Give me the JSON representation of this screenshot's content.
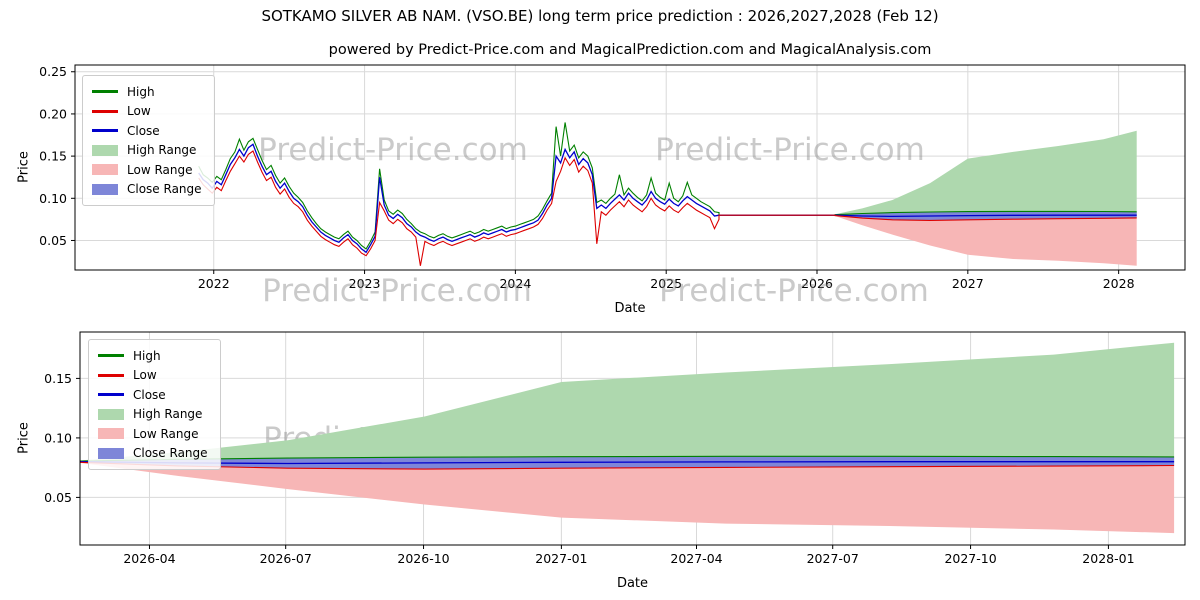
{
  "figure": {
    "title": "SOTKAMO SILVER AB NAM. (VSO.BE) long term price prediction : 2026,2027,2028 (Feb 12)",
    "subtitle": "powered by Predict-Price.com and MagicalPrediction.com and MagicalAnalysis.com",
    "watermark": "Predict-Price.com"
  },
  "chart_data": [
    {
      "type": "line",
      "title": "powered by Predict-Price.com and MagicalPrediction.com and MagicalAnalysis.com",
      "xlabel": "Date",
      "ylabel": "Price",
      "xlim": [
        2021.08,
        2028.44
      ],
      "ylim": [
        0.015,
        0.258
      ],
      "xticks": [
        2022,
        2023,
        2024,
        2025,
        2026,
        2027,
        2028
      ],
      "xtick_labels": [
        "2022",
        "2023",
        "2024",
        "2025",
        "2026",
        "2027",
        "2028"
      ],
      "yticks": [
        0.05,
        0.1,
        0.15,
        0.2,
        0.25
      ],
      "ytick_labels": [
        "0.05",
        "0.10",
        "0.15",
        "0.20",
        "0.25"
      ],
      "grid": true,
      "legend_position": "upper left",
      "legend": [
        {
          "label": "High",
          "swatch": "line",
          "color": "#008000"
        },
        {
          "label": "Low",
          "swatch": "line",
          "color": "#dd0000"
        },
        {
          "label": "Close",
          "swatch": "line",
          "color": "#0000cc"
        },
        {
          "label": "High Range",
          "swatch": "patch",
          "color": "#aed8ae"
        },
        {
          "label": "Low Range",
          "swatch": "patch",
          "color": "#f7b6b6"
        },
        {
          "label": "Close Range",
          "swatch": "patch",
          "color": "#7e86d8"
        }
      ],
      "colors": {
        "high": "#008000",
        "low": "#dd0000",
        "close": "#0000cc",
        "high_range": "#aed8ae",
        "low_range": "#f7b6b6",
        "close_range": "#7e86d8",
        "grid": "#d9d9d9"
      },
      "historical_hlc": [
        [
          2021.9,
          0.138,
          0.124,
          0.13
        ],
        [
          2021.93,
          0.128,
          0.116,
          0.122
        ],
        [
          2021.96,
          0.124,
          0.111,
          0.118
        ],
        [
          2021.99,
          0.119,
          0.106,
          0.112
        ],
        [
          2022.02,
          0.126,
          0.113,
          0.12
        ],
        [
          2022.05,
          0.122,
          0.109,
          0.116
        ],
        [
          2022.08,
          0.134,
          0.121,
          0.128
        ],
        [
          2022.11,
          0.147,
          0.132,
          0.14
        ],
        [
          2022.14,
          0.155,
          0.141,
          0.148
        ],
        [
          2022.17,
          0.17,
          0.15,
          0.158
        ],
        [
          2022.2,
          0.157,
          0.143,
          0.15
        ],
        [
          2022.23,
          0.167,
          0.152,
          0.16
        ],
        [
          2022.26,
          0.171,
          0.156,
          0.164
        ],
        [
          2022.29,
          0.158,
          0.143,
          0.15
        ],
        [
          2022.32,
          0.145,
          0.131,
          0.138
        ],
        [
          2022.35,
          0.134,
          0.121,
          0.128
        ],
        [
          2022.38,
          0.139,
          0.125,
          0.132
        ],
        [
          2022.41,
          0.127,
          0.113,
          0.12
        ],
        [
          2022.44,
          0.118,
          0.105,
          0.112
        ],
        [
          2022.47,
          0.124,
          0.111,
          0.118
        ],
        [
          2022.5,
          0.114,
          0.101,
          0.108
        ],
        [
          2022.53,
          0.106,
          0.094,
          0.1
        ],
        [
          2022.56,
          0.101,
          0.09,
          0.096
        ],
        [
          2022.59,
          0.095,
          0.084,
          0.09
        ],
        [
          2022.62,
          0.085,
          0.074,
          0.08
        ],
        [
          2022.65,
          0.077,
          0.067,
          0.072
        ],
        [
          2022.68,
          0.07,
          0.061,
          0.066
        ],
        [
          2022.71,
          0.064,
          0.055,
          0.06
        ],
        [
          2022.74,
          0.06,
          0.051,
          0.056
        ],
        [
          2022.77,
          0.057,
          0.048,
          0.053
        ],
        [
          2022.8,
          0.054,
          0.045,
          0.05
        ],
        [
          2022.83,
          0.052,
          0.043,
          0.048
        ],
        [
          2022.86,
          0.057,
          0.048,
          0.053
        ],
        [
          2022.89,
          0.061,
          0.052,
          0.057
        ],
        [
          2022.92,
          0.054,
          0.045,
          0.05
        ],
        [
          2022.95,
          0.05,
          0.041,
          0.046
        ],
        [
          2022.98,
          0.044,
          0.035,
          0.04
        ],
        [
          2023.01,
          0.04,
          0.032,
          0.036
        ],
        [
          2023.04,
          0.049,
          0.04,
          0.045
        ],
        [
          2023.07,
          0.06,
          0.05,
          0.055
        ],
        [
          2023.1,
          0.135,
          0.095,
          0.125
        ],
        [
          2023.13,
          0.098,
          0.085,
          0.092
        ],
        [
          2023.16,
          0.085,
          0.074,
          0.08
        ],
        [
          2023.19,
          0.081,
          0.07,
          0.076
        ],
        [
          2023.22,
          0.086,
          0.075,
          0.081
        ],
        [
          2023.25,
          0.082,
          0.071,
          0.077
        ],
        [
          2023.28,
          0.075,
          0.064,
          0.07
        ],
        [
          2023.31,
          0.07,
          0.06,
          0.066
        ],
        [
          2023.34,
          0.064,
          0.054,
          0.06
        ],
        [
          2023.37,
          0.06,
          0.02,
          0.056
        ],
        [
          2023.4,
          0.058,
          0.049,
          0.054
        ],
        [
          2023.43,
          0.055,
          0.046,
          0.051
        ],
        [
          2023.46,
          0.053,
          0.044,
          0.049
        ],
        [
          2023.49,
          0.056,
          0.047,
          0.052
        ],
        [
          2023.52,
          0.058,
          0.049,
          0.054
        ],
        [
          2023.55,
          0.055,
          0.046,
          0.051
        ],
        [
          2023.58,
          0.053,
          0.044,
          0.049
        ],
        [
          2023.61,
          0.055,
          0.046,
          0.051
        ],
        [
          2023.64,
          0.057,
          0.048,
          0.053
        ],
        [
          2023.67,
          0.059,
          0.05,
          0.055
        ],
        [
          2023.7,
          0.061,
          0.052,
          0.057
        ],
        [
          2023.73,
          0.058,
          0.049,
          0.054
        ],
        [
          2023.76,
          0.06,
          0.051,
          0.056
        ],
        [
          2023.79,
          0.063,
          0.054,
          0.059
        ],
        [
          2023.82,
          0.061,
          0.052,
          0.057
        ],
        [
          2023.85,
          0.063,
          0.054,
          0.059
        ],
        [
          2023.88,
          0.065,
          0.056,
          0.061
        ],
        [
          2023.91,
          0.067,
          0.058,
          0.063
        ],
        [
          2023.94,
          0.064,
          0.055,
          0.06
        ],
        [
          2023.97,
          0.066,
          0.057,
          0.062
        ],
        [
          2024.0,
          0.067,
          0.058,
          0.063
        ],
        [
          2024.03,
          0.069,
          0.06,
          0.065
        ],
        [
          2024.06,
          0.071,
          0.062,
          0.067
        ],
        [
          2024.09,
          0.073,
          0.064,
          0.069
        ],
        [
          2024.12,
          0.075,
          0.066,
          0.071
        ],
        [
          2024.15,
          0.079,
          0.069,
          0.074
        ],
        [
          2024.18,
          0.087,
          0.076,
          0.082
        ],
        [
          2024.21,
          0.097,
          0.086,
          0.092
        ],
        [
          2024.24,
          0.106,
          0.094,
          0.1
        ],
        [
          2024.27,
          0.185,
          0.12,
          0.15
        ],
        [
          2024.3,
          0.15,
          0.132,
          0.142
        ],
        [
          2024.33,
          0.19,
          0.148,
          0.158
        ],
        [
          2024.36,
          0.156,
          0.139,
          0.148
        ],
        [
          2024.39,
          0.163,
          0.146,
          0.155
        ],
        [
          2024.42,
          0.148,
          0.131,
          0.14
        ],
        [
          2024.45,
          0.155,
          0.138,
          0.147
        ],
        [
          2024.48,
          0.15,
          0.133,
          0.142
        ],
        [
          2024.51,
          0.136,
          0.118,
          0.128
        ],
        [
          2024.54,
          0.095,
          0.046,
          0.088
        ],
        [
          2024.57,
          0.098,
          0.084,
          0.092
        ],
        [
          2024.6,
          0.094,
          0.08,
          0.088
        ],
        [
          2024.63,
          0.1,
          0.086,
          0.094
        ],
        [
          2024.66,
          0.105,
          0.091,
          0.099
        ],
        [
          2024.69,
          0.128,
          0.096,
          0.104
        ],
        [
          2024.72,
          0.104,
          0.09,
          0.098
        ],
        [
          2024.75,
          0.112,
          0.098,
          0.106
        ],
        [
          2024.78,
          0.106,
          0.092,
          0.1
        ],
        [
          2024.81,
          0.101,
          0.088,
          0.096
        ],
        [
          2024.84,
          0.097,
          0.084,
          0.092
        ],
        [
          2024.87,
          0.104,
          0.09,
          0.098
        ],
        [
          2024.9,
          0.124,
          0.1,
          0.108
        ],
        [
          2024.93,
          0.106,
          0.092,
          0.1
        ],
        [
          2024.96,
          0.101,
          0.088,
          0.096
        ],
        [
          2024.99,
          0.098,
          0.085,
          0.093
        ],
        [
          2025.02,
          0.118,
          0.091,
          0.099
        ],
        [
          2025.05,
          0.1,
          0.086,
          0.094
        ],
        [
          2025.08,
          0.096,
          0.083,
          0.091
        ],
        [
          2025.11,
          0.103,
          0.089,
          0.097
        ],
        [
          2025.14,
          0.119,
          0.094,
          0.102
        ],
        [
          2025.17,
          0.104,
          0.09,
          0.098
        ],
        [
          2025.2,
          0.1,
          0.086,
          0.094
        ],
        [
          2025.23,
          0.096,
          0.083,
          0.091
        ],
        [
          2025.26,
          0.093,
          0.08,
          0.088
        ],
        [
          2025.29,
          0.09,
          0.077,
          0.085
        ],
        [
          2025.32,
          0.084,
          0.064,
          0.079
        ],
        [
          2025.35,
          0.083,
          0.075,
          0.08
        ]
      ],
      "flat_segment": {
        "t_start": 2025.35,
        "t_end": 2026.12,
        "value": 0.08
      },
      "prediction": {
        "t": [
          2026.12,
          2026.3,
          2026.5,
          2026.75,
          2027.0,
          2027.3,
          2027.6,
          2027.9,
          2028.12
        ],
        "close": [
          0.08,
          0.079,
          0.0785,
          0.079,
          0.0795,
          0.0798,
          0.08,
          0.08,
          0.08
        ],
        "close_upper": [
          0.0805,
          0.082,
          0.083,
          0.0838,
          0.0842,
          0.0845,
          0.0845,
          0.0843,
          0.084
        ],
        "close_lower": [
          0.0795,
          0.0765,
          0.0745,
          0.0738,
          0.0745,
          0.0752,
          0.0758,
          0.0763,
          0.0768
        ],
        "high_upper": [
          0.081,
          0.088,
          0.098,
          0.118,
          0.147,
          0.155,
          0.162,
          0.17,
          0.18
        ],
        "low_lower": [
          0.079,
          0.068,
          0.057,
          0.044,
          0.033,
          0.028,
          0.026,
          0.023,
          0.02
        ]
      }
    },
    {
      "type": "area",
      "xlabel": "Date",
      "ylabel": "Price",
      "xlim": [
        2026.12,
        2028.14
      ],
      "ylim": [
        0.01,
        0.189
      ],
      "xticks": [
        2026.247,
        2026.496,
        2026.748,
        2027.0,
        2027.247,
        2027.496,
        2027.748,
        2028.0
      ],
      "xtick_labels": [
        "2026-04",
        "2026-07",
        "2026-10",
        "2027-01",
        "2027-04",
        "2027-07",
        "2027-10",
        "2028-01"
      ],
      "yticks": [
        0.05,
        0.1,
        0.15
      ],
      "ytick_labels": [
        "0.05",
        "0.10",
        "0.15"
      ],
      "grid": true,
      "legend_position": "upper left",
      "legend": [
        {
          "label": "High",
          "swatch": "line",
          "color": "#008000"
        },
        {
          "label": "Low",
          "swatch": "line",
          "color": "#dd0000"
        },
        {
          "label": "Close",
          "swatch": "line",
          "color": "#0000cc"
        },
        {
          "label": "High Range",
          "swatch": "patch",
          "color": "#aed8ae"
        },
        {
          "label": "Low Range",
          "swatch": "patch",
          "color": "#f7b6b6"
        },
        {
          "label": "Close Range",
          "swatch": "patch",
          "color": "#7e86d8"
        }
      ],
      "series_source": "prediction of chart 0"
    }
  ]
}
